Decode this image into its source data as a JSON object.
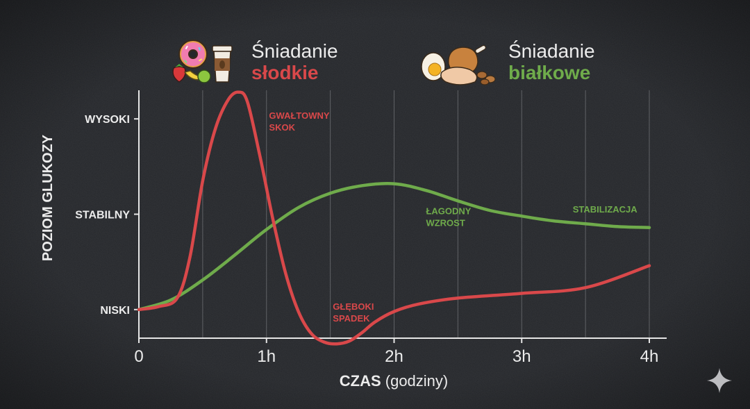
{
  "chart_data": {
    "type": "line",
    "xlabel": "CZAS",
    "xlabel_suffix": "(godziny)",
    "ylabel": "POZIOM GLUKOZY",
    "x_ticks": [
      {
        "value": 0,
        "label": "0"
      },
      {
        "value": 1,
        "label": "1h"
      },
      {
        "value": 2,
        "label": "2h"
      },
      {
        "value": 3,
        "label": "3h"
      },
      {
        "value": 4,
        "label": "4h"
      }
    ],
    "y_ticks": [
      {
        "value": 1,
        "label": "NISKI"
      },
      {
        "value": 2,
        "label": "STABILNY"
      },
      {
        "value": 3,
        "label": "WYSOKI"
      }
    ],
    "xlim": [
      0,
      4
    ],
    "ylim": [
      0.7,
      3.3
    ],
    "grid": "vertical",
    "series": [
      {
        "name": "Śniadanie słodkie",
        "color": "#d9484a",
        "x": [
          0,
          0.15,
          0.3,
          0.4,
          0.5,
          0.6,
          0.7,
          0.78,
          0.85,
          0.95,
          1.05,
          1.15,
          1.25,
          1.35,
          1.45,
          1.55,
          1.65,
          1.75,
          1.85,
          2.0,
          2.2,
          2.5,
          3.0,
          3.5,
          4.0
        ],
        "y": [
          1.0,
          1.03,
          1.12,
          1.55,
          2.35,
          2.9,
          3.2,
          3.28,
          3.18,
          2.6,
          1.95,
          1.38,
          0.98,
          0.75,
          0.66,
          0.64,
          0.67,
          0.76,
          0.87,
          0.98,
          1.06,
          1.12,
          1.17,
          1.23,
          1.46
        ]
      },
      {
        "name": "Śniadanie białkowe",
        "color": "#6fab4b",
        "x": [
          0,
          0.25,
          0.5,
          0.75,
          1.0,
          1.25,
          1.5,
          1.75,
          2.0,
          2.25,
          2.5,
          2.75,
          3.0,
          3.25,
          3.5,
          3.75,
          4.0
        ],
        "y": [
          1.0,
          1.1,
          1.31,
          1.57,
          1.84,
          2.07,
          2.22,
          2.3,
          2.32,
          2.25,
          2.14,
          2.04,
          1.98,
          1.93,
          1.9,
          1.87,
          1.86
        ]
      }
    ],
    "annotations": [
      {
        "text": [
          "GWAŁTOWNY",
          "SKOK"
        ],
        "color": "#d9484a",
        "x": 1.02,
        "y": 3.0
      },
      {
        "text": [
          "GŁĘBOKI",
          "SPADEK"
        ],
        "color": "#d9484a",
        "x": 1.52,
        "y": 1.0
      },
      {
        "text": [
          "ŁAGODNY",
          "WZROST"
        ],
        "color": "#6fab4b",
        "x": 2.25,
        "y": 2.0
      },
      {
        "text": [
          "STABILIZACJA"
        ],
        "color": "#6fab4b",
        "x": 3.4,
        "y": 2.02
      }
    ],
    "legend": [
      {
        "line1": "Śniadanie",
        "line2": "słodkie",
        "color": "#d9484a",
        "icon": "sweet-breakfast-icon"
      },
      {
        "line1": "Śniadanie",
        "line2": "białkowe",
        "color": "#6fab4b",
        "icon": "protein-breakfast-icon"
      }
    ],
    "legend_position": "top"
  },
  "colors": {
    "background": "#222428",
    "text": "#ececec",
    "grid": "#8a8c90",
    "sweet": "#d9484a",
    "protein": "#6fab4b"
  }
}
